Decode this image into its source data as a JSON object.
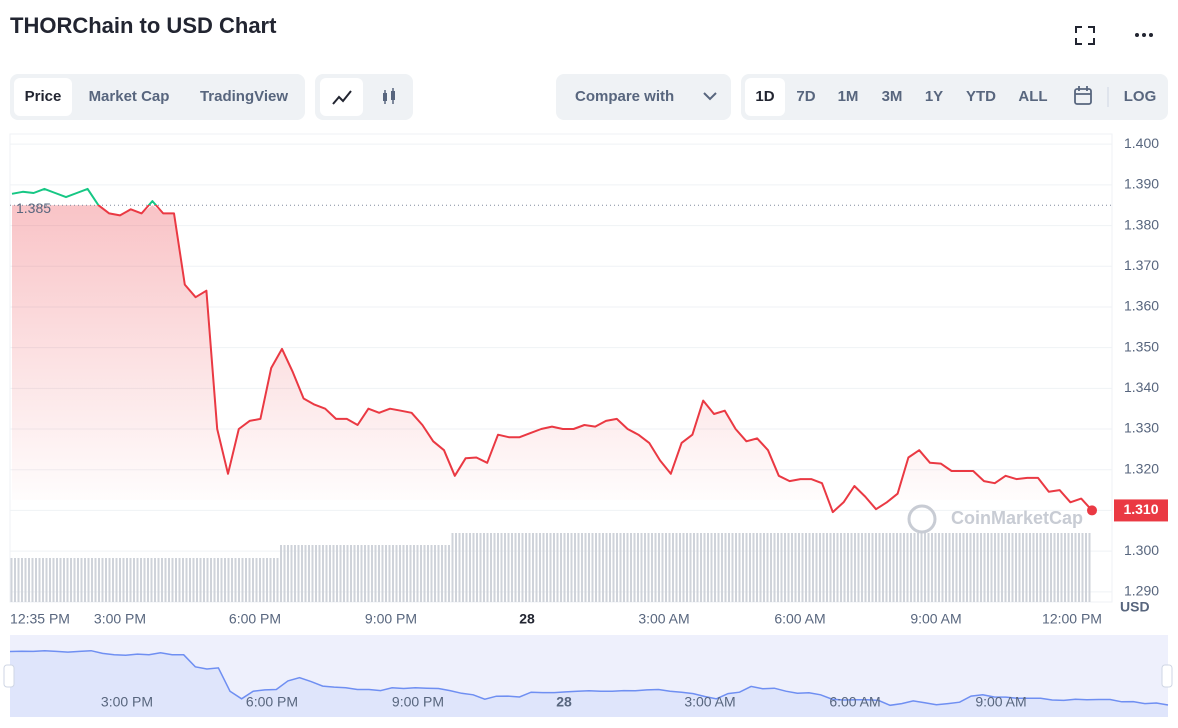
{
  "title": "THORChain to USD Chart",
  "tabs": [
    "Price",
    "Market Cap",
    "TradingView"
  ],
  "compare": "Compare with",
  "ranges": [
    "1D",
    "7D",
    "1M",
    "3M",
    "1Y",
    "YTD",
    "ALL"
  ],
  "log": "LOG",
  "watermark": "CoinMarketCap",
  "chart_data": {
    "type": "line",
    "x_labels": [
      "12:35 PM",
      "3:00 PM",
      "6:00 PM",
      "9:00 PM",
      "28",
      "3:00 AM",
      "6:00 AM",
      "9:00 AM",
      "12:00 PM"
    ],
    "values": [
      1.3878,
      1.3883,
      1.388,
      1.389,
      1.388,
      1.387,
      1.388,
      1.389,
      1.385,
      1.383,
      1.3825,
      1.384,
      1.383,
      1.386,
      1.383,
      1.383,
      1.3655,
      1.3624,
      1.364,
      1.33,
      1.319,
      1.33,
      1.332,
      1.3325,
      1.345,
      1.3497,
      1.344,
      1.3375,
      1.336,
      1.335,
      1.3325,
      1.3325,
      1.331,
      1.335,
      1.334,
      1.335,
      1.3345,
      1.334,
      1.331,
      1.327,
      1.3248,
      1.3185,
      1.3228,
      1.323,
      1.3217,
      1.3286,
      1.328,
      1.328,
      1.329,
      1.33,
      1.3306,
      1.33,
      1.33,
      1.331,
      1.3306,
      1.332,
      1.3325,
      1.33,
      1.3286,
      1.3266,
      1.3223,
      1.319,
      1.3266,
      1.3286,
      1.337,
      1.3337,
      1.3345,
      1.33,
      1.327,
      1.3277,
      1.3248,
      1.3185,
      1.3172,
      1.3177,
      1.3177,
      1.3167,
      1.3096,
      1.312,
      1.316,
      1.3134,
      1.3103,
      1.312,
      1.3141,
      1.323,
      1.3248,
      1.3217,
      1.3215,
      1.3197,
      1.3197,
      1.3197,
      1.3172,
      1.3167,
      1.3185,
      1.3177,
      1.318,
      1.318,
      1.3146,
      1.315,
      1.312,
      1.3129,
      1.31
    ],
    "reference": 1.385,
    "reference_label": "1.385",
    "current_label": "1.310",
    "up_color": "#16c784",
    "down_color": "#ea3943",
    "ylim": [
      1.2875,
      1.4025
    ],
    "yticks": [
      {
        "value": 1.4,
        "label": "1.400"
      },
      {
        "value": 1.39,
        "label": "1.390"
      },
      {
        "value": 1.38,
        "label": "1.380"
      },
      {
        "value": 1.37,
        "label": "1.370"
      },
      {
        "value": 1.36,
        "label": "1.360"
      },
      {
        "value": 1.35,
        "label": "1.350"
      },
      {
        "value": 1.34,
        "label": "1.340"
      },
      {
        "value": 1.33,
        "label": "1.330"
      },
      {
        "value": 1.32,
        "label": "1.320"
      },
      {
        "value": 1.31,
        "label": "1.310"
      },
      {
        "value": 1.3,
        "label": "1.300"
      },
      {
        "value": 1.29,
        "label": "1.290"
      }
    ],
    "y_unit": "USD",
    "grid": true
  }
}
